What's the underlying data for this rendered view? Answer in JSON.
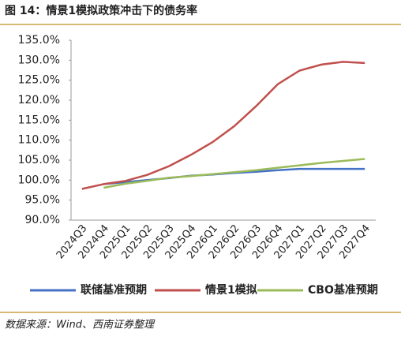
{
  "chart_data": {
    "type": "line",
    "title": "图 14：情景1模拟政策冲击下的债务率",
    "source": "数据来源：Wind、西南证券整理",
    "categories": [
      "2024Q3",
      "2024Q4",
      "2025Q1",
      "2025Q2",
      "2025Q3",
      "2025Q4",
      "2026Q1",
      "2026Q2",
      "2026Q3",
      "2026Q4",
      "2027Q1",
      "2027Q2",
      "2027Q3",
      "2027Q4"
    ],
    "series": [
      {
        "name": "联储基准预期",
        "color": "#4472c4",
        "values": [
          null,
          99.0,
          99.5,
          100.0,
          100.5,
          101.1,
          101.4,
          101.8,
          102.1,
          102.5,
          102.8,
          102.8,
          102.8,
          102.8
        ]
      },
      {
        "name": "情景1模拟",
        "color": "#c0504d",
        "values": [
          97.8,
          99.0,
          99.8,
          101.3,
          103.5,
          106.3,
          109.5,
          113.5,
          118.5,
          124.0,
          127.4,
          128.9,
          129.6,
          129.3
        ]
      },
      {
        "name": "CBO基准预期",
        "color": "#9bbb59",
        "values": [
          null,
          98.1,
          99.1,
          99.8,
          100.6,
          101.0,
          101.5,
          102.0,
          102.5,
          103.1,
          103.7,
          104.3,
          104.8,
          105.3
        ]
      }
    ],
    "ylim": [
      90,
      135
    ],
    "yticks": [
      {
        "value": 90,
        "label": "90.0%"
      },
      {
        "value": 95,
        "label": "95.0%"
      },
      {
        "value": 100,
        "label": "100.0%"
      },
      {
        "value": 105,
        "label": "105.0%"
      },
      {
        "value": 110,
        "label": "110.0%"
      },
      {
        "value": 115,
        "label": "115.0%"
      },
      {
        "value": 120,
        "label": "120.0%"
      },
      {
        "value": 125,
        "label": "125.0%"
      },
      {
        "value": 130,
        "label": "130.0%"
      },
      {
        "value": 135,
        "label": "135.0%"
      }
    ]
  }
}
